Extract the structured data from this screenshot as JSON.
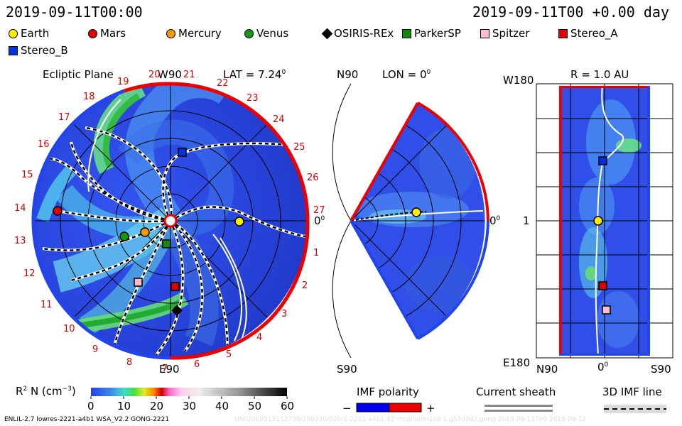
{
  "header": {
    "left_time": "2019-09-11T00:00",
    "right_time": "2019-09-11T00 +0.00 day"
  },
  "legend": [
    {
      "label": "Earth",
      "color": "#ffee00",
      "shape": "circle"
    },
    {
      "label": "Mars",
      "color": "#e00000",
      "shape": "circle"
    },
    {
      "label": "Mercury",
      "color": "#ff9900",
      "shape": "circle"
    },
    {
      "label": "Venus",
      "color": "#119911",
      "shape": "circle"
    },
    {
      "label": "OSIRIS-REx",
      "color": "#000000",
      "shape": "diamond"
    },
    {
      "label": "ParkerSP",
      "color": "#118811",
      "shape": "square"
    },
    {
      "label": "Spitzer",
      "color": "#ffbbcc",
      "shape": "square"
    },
    {
      "label": "Stereo_A",
      "color": "#dd0000",
      "shape": "square"
    },
    {
      "label": "Stereo_B",
      "color": "#0033dd",
      "shape": "square"
    }
  ],
  "panel1": {
    "title": "Ecliptic Plane",
    "top_label": "W90",
    "lat_label": "LAT = 7.24",
    "lat_sup": "0",
    "bottom_label": "E90",
    "right_label": "0",
    "right_sup": "0",
    "ticks": [
      "19",
      "20",
      "21",
      "22",
      "23",
      "24",
      "25",
      "26",
      "27",
      "1",
      "2",
      "3",
      "4",
      "5",
      "6",
      "7",
      "8",
      "9",
      "10",
      "11",
      "12",
      "13",
      "14",
      "15",
      "16",
      "17",
      "18"
    ]
  },
  "panel2": {
    "top_label": "N90",
    "lon_label": "LON = 0",
    "lon_sup": "0",
    "bottom_label": "S90",
    "right_label": "0",
    "right_sup": "0"
  },
  "panel3": {
    "title": "R = 1.0 AU",
    "top_left": "W180",
    "mid_left": "1",
    "bottom_left": "E180",
    "x_left": "N90",
    "x_mid": "0",
    "x_mid_sup": "0",
    "x_right": "S90"
  },
  "colorbar": {
    "label": "R",
    "label_sup": "2",
    "label_rest": " N (cm",
    "label_exp": "−3",
    "label_end": ")",
    "ticks": [
      "0",
      "10",
      "20",
      "30",
      "40",
      "50",
      "60"
    ]
  },
  "imf": {
    "title": "IMF polarity",
    "minus": "−",
    "plus": "+",
    "neg_color": "#0000ee",
    "pos_color": "#ee0000"
  },
  "current_sheath": {
    "title": "Current sheath"
  },
  "imf_line": {
    "title": "3D IMF line"
  },
  "footer": {
    "left": "ENLIL-2.7 lowres-2221-a4b1 WSA_V2.2 GONG-2221",
    "right": "UNIQUE0912112738/250330/020/1-2221-a4b1.32-mcpl/umn1cd-1.g53d0d2.gong-2019-09-11T00    2019-09-12"
  }
}
